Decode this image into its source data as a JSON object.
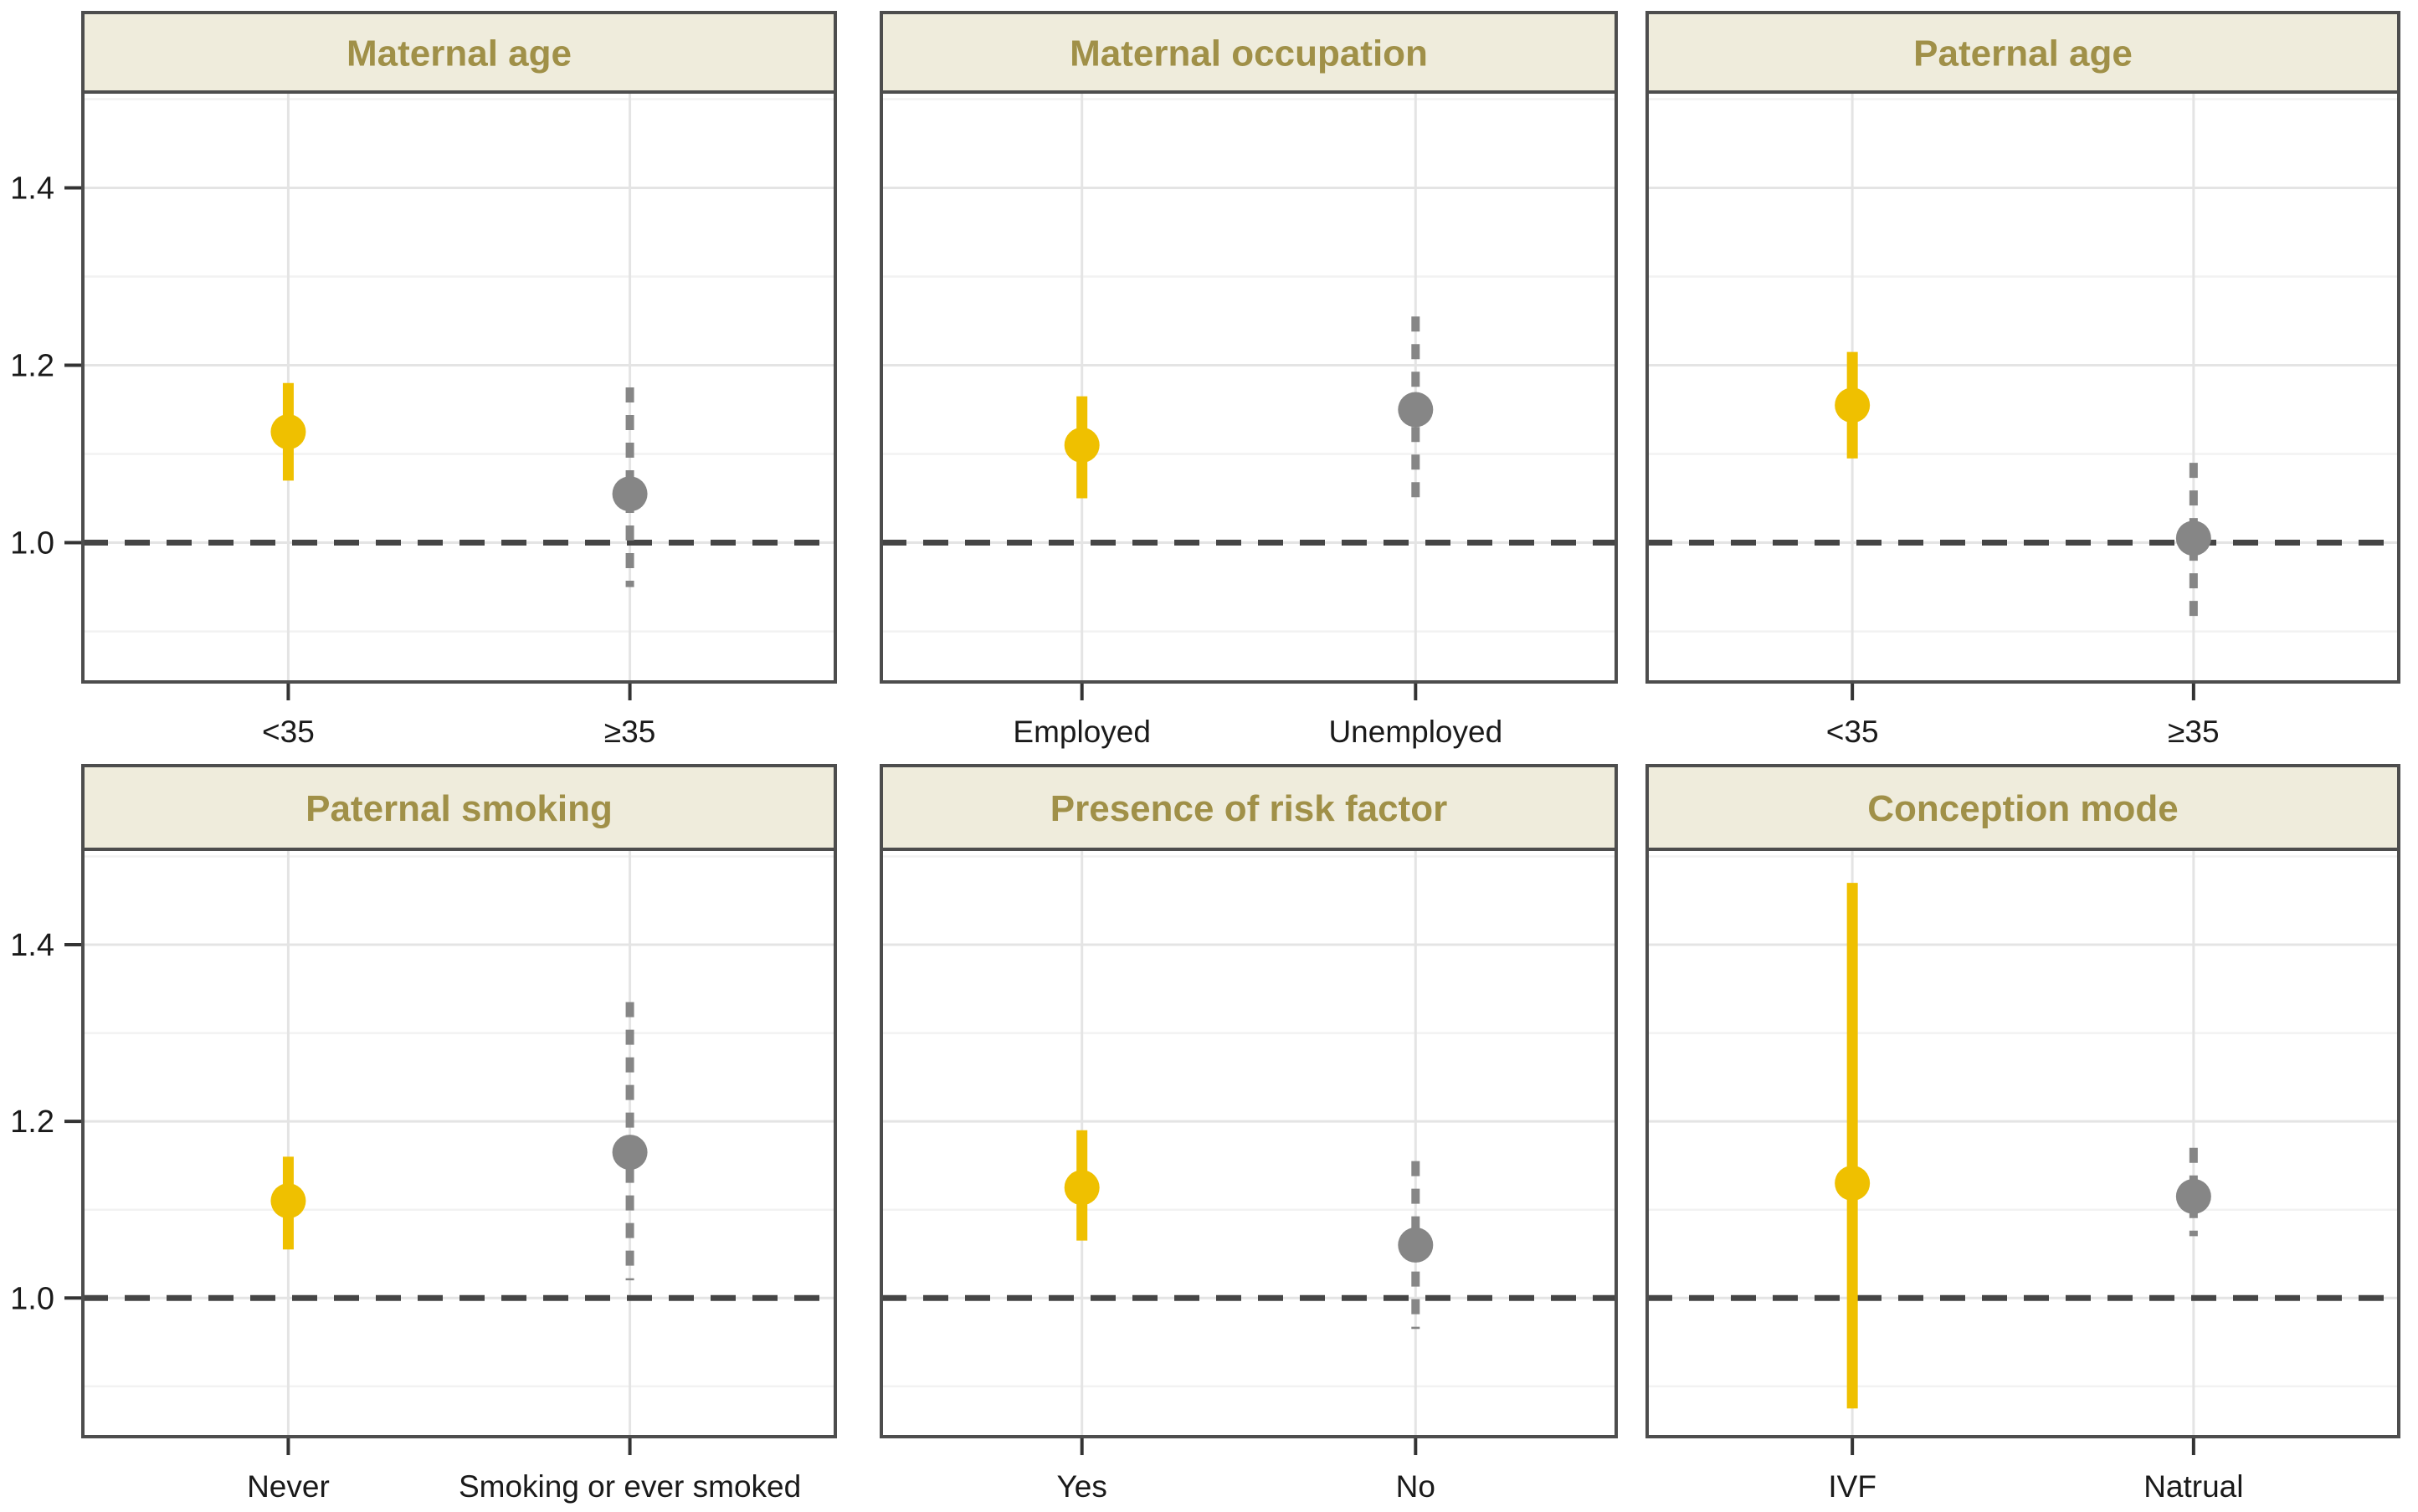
{
  "figure": {
    "description": "Faceted forest plot of subgroup estimates with 95% confidence intervals",
    "background": "#FFFFFF"
  },
  "chart_data": {
    "type": "pointrange-facet-grid",
    "facet_layout": {
      "rows": 2,
      "cols": 3
    },
    "ylim": [
      0.843,
      1.508
    ],
    "yticks": [
      {
        "value": 1.0,
        "label": "1.0"
      },
      {
        "value": 1.2,
        "label": "1.2"
      },
      {
        "value": 1.4,
        "label": "1.4"
      }
    ],
    "yticks_minor": [
      0.9,
      1.1,
      1.3,
      1.5
    ],
    "reference_line": {
      "value": 1.0,
      "style": "dashed"
    },
    "grid": "on",
    "legend": "none",
    "xlabel": "",
    "ylabel": "",
    "colors": {
      "series_primary": "#EFC000",
      "series_secondary": "#868686",
      "reference_line": "#454545",
      "grid_major": "#E4E4E4",
      "grid_minor": "#F2F2F2",
      "panel_border": "#4D4D4D",
      "header_fill": "#EFECDC",
      "header_text": "#A09048",
      "axis_text": "#1A1A1A",
      "tick_mark": "#333333",
      "background": "#FFFFFF"
    },
    "panels": [
      {
        "title": "Maternal age",
        "points": [
          {
            "category": "<35",
            "estimate": 1.125,
            "ci_low": 1.07,
            "ci_high": 1.18,
            "series": "primary",
            "ci_style": "solid"
          },
          {
            "category": "≥35",
            "estimate": 1.055,
            "ci_low": 0.95,
            "ci_high": 1.175,
            "series": "secondary",
            "ci_style": "dashed"
          }
        ]
      },
      {
        "title": "Maternal occupation",
        "points": [
          {
            "category": "Employed",
            "estimate": 1.11,
            "ci_low": 1.05,
            "ci_high": 1.165,
            "series": "primary",
            "ci_style": "solid"
          },
          {
            "category": "Unemployed",
            "estimate": 1.15,
            "ci_low": 1.05,
            "ci_high": 1.255,
            "series": "secondary",
            "ci_style": "dashed"
          }
        ]
      },
      {
        "title": "Paternal age",
        "points": [
          {
            "category": "<35",
            "estimate": 1.155,
            "ci_low": 1.095,
            "ci_high": 1.215,
            "series": "primary",
            "ci_style": "solid"
          },
          {
            "category": "≥35",
            "estimate": 1.005,
            "ci_low": 0.91,
            "ci_high": 1.09,
            "series": "secondary",
            "ci_style": "dashed"
          }
        ]
      },
      {
        "title": "Paternal smoking",
        "points": [
          {
            "category": "Never",
            "estimate": 1.11,
            "ci_low": 1.055,
            "ci_high": 1.16,
            "series": "primary",
            "ci_style": "solid"
          },
          {
            "category": "Smoking or ever smoked",
            "estimate": 1.165,
            "ci_low": 1.02,
            "ci_high": 1.335,
            "series": "secondary",
            "ci_style": "dashed"
          }
        ]
      },
      {
        "title": "Presence of risk factor",
        "points": [
          {
            "category": "Yes",
            "estimate": 1.125,
            "ci_low": 1.065,
            "ci_high": 1.19,
            "series": "primary",
            "ci_style": "solid"
          },
          {
            "category": "No",
            "estimate": 1.06,
            "ci_low": 0.965,
            "ci_high": 1.155,
            "series": "secondary",
            "ci_style": "dashed"
          }
        ]
      },
      {
        "title": "Conception mode",
        "points": [
          {
            "category": "IVF",
            "estimate": 1.13,
            "ci_low": 0.875,
            "ci_high": 1.47,
            "series": "primary",
            "ci_style": "solid"
          },
          {
            "category": "Natrual",
            "estimate": 1.115,
            "ci_low": 1.07,
            "ci_high": 1.17,
            "series": "secondary",
            "ci_style": "dashed"
          }
        ]
      }
    ]
  }
}
